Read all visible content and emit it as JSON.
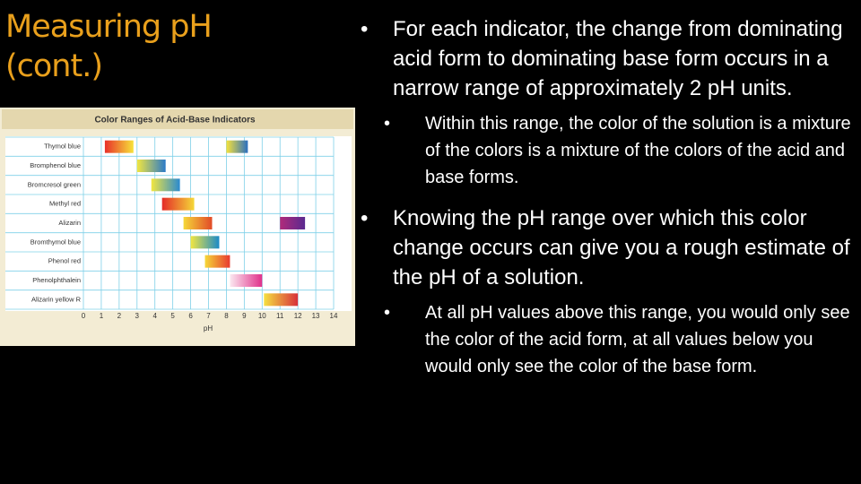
{
  "title": "Measuring pH (cont.)",
  "bullets": [
    {
      "text": "For each indicator, the change from dominating acid form to dominating base form occurs in a narrow range of approximately 2 pH units.",
      "sub": [
        "Within this range, the color of the solution is a mixture of the colors is a mixture of the colors of the acid and base forms."
      ]
    },
    {
      "text": "Knowing the pH range over which this color change occurs can give you a rough estimate of the pH of a solution.",
      "sub": [
        "At all pH values above this range, you would only see the color of the acid form, at all values below you would only see the color of the base form."
      ]
    }
  ],
  "chart_data": {
    "type": "range-bar",
    "title": "Color Ranges of Acid-Base Indicators",
    "xlabel": "pH",
    "xlim": [
      0,
      14
    ],
    "xticks": [
      0,
      1,
      2,
      3,
      4,
      5,
      6,
      7,
      8,
      9,
      10,
      11,
      12,
      13,
      14
    ],
    "grid": true,
    "indicators": [
      {
        "name": "Thymol blue",
        "ranges": [
          {
            "start": 1.2,
            "end": 2.8,
            "colors": [
              "#e8302a",
              "#f7e23a"
            ]
          },
          {
            "start": 8.0,
            "end": 9.2,
            "colors": [
              "#f7e23a",
              "#2a6fc0"
            ]
          }
        ]
      },
      {
        "name": "Bromphenol blue",
        "ranges": [
          {
            "start": 3.0,
            "end": 4.6,
            "colors": [
              "#f2e640",
              "#2a7ac8"
            ]
          }
        ]
      },
      {
        "name": "Bromcresol green",
        "ranges": [
          {
            "start": 3.8,
            "end": 5.4,
            "colors": [
              "#f2e640",
              "#2a8ad0"
            ]
          }
        ]
      },
      {
        "name": "Methyl red",
        "ranges": [
          {
            "start": 4.4,
            "end": 6.2,
            "colors": [
              "#e42a28",
              "#f5d838"
            ]
          }
        ]
      },
      {
        "name": "Alizarin",
        "ranges": [
          {
            "start": 5.6,
            "end": 7.2,
            "colors": [
              "#f5d838",
              "#e24a28"
            ]
          },
          {
            "start": 11.0,
            "end": 12.4,
            "colors": [
              "#b02a7a",
              "#5a2a90"
            ]
          }
        ]
      },
      {
        "name": "Bromthymol blue",
        "ranges": [
          {
            "start": 6.0,
            "end": 7.6,
            "colors": [
              "#f2e640",
              "#1a8ac8"
            ]
          }
        ]
      },
      {
        "name": "Phenol red",
        "ranges": [
          {
            "start": 6.8,
            "end": 8.2,
            "colors": [
              "#f5d838",
              "#e83a30"
            ]
          }
        ]
      },
      {
        "name": "Phenolphthalein",
        "ranges": [
          {
            "start": 8.2,
            "end": 10.0,
            "colors": [
              "#fbe8f0",
              "#e0308a"
            ]
          }
        ]
      },
      {
        "name": "Alizarin yellow R",
        "ranges": [
          {
            "start": 10.1,
            "end": 12.0,
            "colors": [
              "#f5e040",
              "#d8303a"
            ]
          }
        ]
      }
    ]
  }
}
